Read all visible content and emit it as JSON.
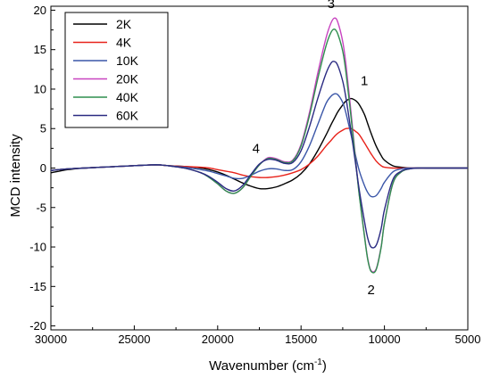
{
  "chart_data": {
    "type": "line",
    "xlabel": "Wavenumber (cm",
    "xlabel_sup": "-1",
    "xlabel_close": ")",
    "ylabel": "MCD intensity",
    "xlim": [
      30000,
      5000
    ],
    "ylim": [
      -20.5,
      20.5
    ],
    "x_reversed": true,
    "grid": false,
    "legend_position": "top-left",
    "xticks": [
      30000,
      25000,
      20000,
      15000,
      10000,
      5000
    ],
    "yticks": [
      -20,
      -15,
      -10,
      -5,
      0,
      5,
      10,
      15,
      20
    ],
    "x": [
      30000,
      29000,
      28000,
      27000,
      26000,
      25000,
      24000,
      23500,
      23000,
      22000,
      21000,
      20500,
      20000,
      19500,
      19000,
      18500,
      18000,
      17500,
      17000,
      16500,
      16000,
      15500,
      15000,
      14500,
      14000,
      13500,
      13200,
      13000,
      12800,
      12500,
      12300,
      12000,
      11700,
      11500,
      11200,
      11000,
      10800,
      10500,
      10200,
      10000,
      9500,
      9000,
      8500,
      8000,
      7500,
      7000,
      6000,
      5000
    ],
    "series": [
      {
        "name": "2K",
        "color": "#000000",
        "values": [
          -0.6,
          -0.2,
          0.0,
          0.1,
          0.2,
          0.3,
          0.4,
          0.4,
          0.3,
          0.2,
          0.0,
          -0.2,
          -0.5,
          -0.9,
          -1.4,
          -1.9,
          -2.3,
          -2.6,
          -2.6,
          -2.4,
          -2.0,
          -1.5,
          -0.7,
          0.5,
          2.2,
          4.2,
          5.5,
          6.3,
          7.1,
          8.0,
          8.5,
          8.8,
          8.5,
          8.0,
          6.8,
          5.6,
          4.4,
          2.8,
          1.6,
          1.0,
          0.3,
          0.1,
          0.0,
          0.0,
          0.0,
          0.0,
          0.0,
          0.0
        ]
      },
      {
        "name": "4K",
        "color": "#e8221a",
        "values": [
          -0.3,
          -0.1,
          0.0,
          0.1,
          0.2,
          0.3,
          0.4,
          0.4,
          0.3,
          0.2,
          0.1,
          0.0,
          -0.2,
          -0.4,
          -0.6,
          -0.9,
          -1.1,
          -1.2,
          -1.2,
          -1.1,
          -0.9,
          -0.6,
          -0.2,
          0.5,
          1.5,
          2.8,
          3.5,
          4.0,
          4.4,
          4.8,
          5.0,
          5.0,
          4.6,
          4.2,
          3.2,
          2.5,
          1.8,
          0.9,
          0.3,
          0.1,
          0.0,
          0.0,
          0.0,
          0.0,
          0.0,
          0.0,
          0.0,
          0.0
        ]
      },
      {
        "name": "10K",
        "color": "#3a56a8",
        "values": [
          -0.3,
          -0.1,
          0.0,
          0.1,
          0.2,
          0.3,
          0.4,
          0.4,
          0.3,
          0.1,
          -0.2,
          -0.4,
          -0.7,
          -1.0,
          -1.3,
          -1.3,
          -0.9,
          -0.4,
          -0.1,
          -0.1,
          -0.3,
          -0.2,
          0.8,
          2.8,
          5.5,
          8.2,
          9.1,
          9.4,
          9.3,
          8.3,
          6.9,
          4.2,
          1.3,
          -0.4,
          -2.2,
          -3.1,
          -3.6,
          -3.5,
          -2.6,
          -1.8,
          -0.5,
          -0.1,
          0.0,
          0.0,
          0.0,
          0.0,
          0.0,
          0.0
        ]
      },
      {
        "name": "20K",
        "color": "#c844c0",
        "values": [
          -0.3,
          -0.1,
          0.0,
          0.1,
          0.2,
          0.3,
          0.4,
          0.4,
          0.3,
          0.0,
          -0.6,
          -1.2,
          -2.0,
          -2.9,
          -3.2,
          -2.5,
          -1.0,
          0.4,
          1.3,
          1.2,
          0.8,
          1.0,
          3.0,
          7.0,
          12.0,
          16.5,
          18.4,
          19.0,
          18.5,
          16.0,
          13.0,
          7.0,
          0.5,
          -3.5,
          -8.5,
          -11.5,
          -13.0,
          -12.8,
          -10.0,
          -7.0,
          -2.0,
          -0.5,
          -0.1,
          0.0,
          0.0,
          0.0,
          0.0,
          0.0
        ]
      },
      {
        "name": "40K",
        "color": "#2f8f4e",
        "values": [
          -0.3,
          -0.1,
          0.0,
          0.1,
          0.2,
          0.3,
          0.4,
          0.4,
          0.3,
          0.0,
          -0.6,
          -1.2,
          -2.0,
          -2.9,
          -3.2,
          -2.5,
          -1.0,
          0.4,
          1.2,
          1.1,
          0.7,
          0.9,
          2.8,
          6.6,
          11.3,
          15.5,
          17.2,
          17.6,
          17.0,
          14.8,
          12.0,
          6.4,
          0.3,
          -3.6,
          -8.6,
          -11.6,
          -13.1,
          -12.9,
          -10.1,
          -7.0,
          -2.0,
          -0.5,
          -0.1,
          0.0,
          0.0,
          0.0,
          0.0,
          0.0
        ]
      },
      {
        "name": "60K",
        "color": "#2a2a82",
        "values": [
          -0.3,
          -0.1,
          0.0,
          0.1,
          0.2,
          0.3,
          0.4,
          0.4,
          0.3,
          0.0,
          -0.6,
          -1.1,
          -1.8,
          -2.6,
          -2.9,
          -2.2,
          -0.8,
          0.5,
          1.1,
          1.0,
          0.6,
          0.7,
          2.2,
          5.2,
          8.8,
          12.0,
          13.3,
          13.5,
          13.0,
          11.0,
          8.8,
          4.6,
          0.1,
          -2.9,
          -6.7,
          -8.9,
          -10.0,
          -9.8,
          -7.7,
          -5.3,
          -1.5,
          -0.4,
          -0.1,
          0.0,
          0.0,
          0.0,
          0.0,
          0.0
        ]
      }
    ],
    "annotations": [
      {
        "text": "1",
        "x": 11200,
        "y": 10.5
      },
      {
        "text": "2",
        "x": 10800,
        "y": -16.0
      },
      {
        "text": "3",
        "x": 13200,
        "y": 20.3
      },
      {
        "text": "4",
        "x": 17700,
        "y": 1.9
      }
    ]
  }
}
